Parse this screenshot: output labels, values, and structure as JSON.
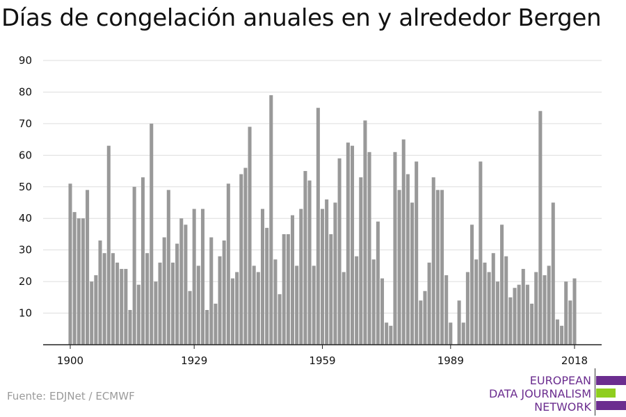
{
  "title": "Días de congelación anuales en y alrededor Bergen",
  "source": "Fuente: EDJNet / ECMWF",
  "logo": {
    "lines": [
      "EUROPEAN",
      "DATA JOURNALISM",
      "NETWORK"
    ],
    "colors": {
      "purple": "#6b2d8f",
      "green": "#8fce1f"
    }
  },
  "colors": {
    "bar": "#999999",
    "grid": "#dddddd",
    "axis": "#222222",
    "text": "#111111"
  },
  "chart_data": {
    "type": "bar",
    "title": "Días de congelación anuales en y alrededor Bergen",
    "xlabel": "",
    "ylabel": "",
    "ylim": [
      0,
      90
    ],
    "yticks": [
      10,
      20,
      30,
      40,
      50,
      60,
      70,
      80,
      90
    ],
    "xticks": [
      1900,
      1929,
      1959,
      1989,
      2018
    ],
    "grid": true,
    "x": [
      1900,
      1901,
      1902,
      1903,
      1904,
      1905,
      1906,
      1907,
      1908,
      1909,
      1910,
      1911,
      1912,
      1913,
      1914,
      1915,
      1916,
      1917,
      1918,
      1919,
      1920,
      1921,
      1922,
      1923,
      1924,
      1925,
      1926,
      1927,
      1928,
      1929,
      1930,
      1931,
      1932,
      1933,
      1934,
      1935,
      1936,
      1937,
      1938,
      1939,
      1940,
      1941,
      1942,
      1943,
      1944,
      1945,
      1946,
      1947,
      1948,
      1949,
      1950,
      1951,
      1952,
      1953,
      1954,
      1955,
      1956,
      1957,
      1958,
      1959,
      1960,
      1961,
      1962,
      1963,
      1964,
      1965,
      1966,
      1967,
      1968,
      1969,
      1970,
      1971,
      1972,
      1973,
      1974,
      1975,
      1976,
      1977,
      1978,
      1979,
      1980,
      1981,
      1982,
      1983,
      1984,
      1985,
      1986,
      1987,
      1988,
      1989,
      1990,
      1991,
      1992,
      1993,
      1994,
      1995,
      1996,
      1997,
      1998,
      1999,
      2000,
      2001,
      2002,
      2003,
      2004,
      2005,
      2006,
      2007,
      2008,
      2009,
      2010,
      2011,
      2012,
      2013,
      2014,
      2015,
      2016,
      2017,
      2018
    ],
    "values": [
      51,
      42,
      40,
      40,
      49,
      20,
      22,
      33,
      29,
      63,
      29,
      26,
      24,
      24,
      11,
      50,
      19,
      53,
      29,
      70,
      20,
      26,
      34,
      49,
      26,
      32,
      40,
      38,
      17,
      43,
      25,
      43,
      11,
      34,
      13,
      28,
      33,
      51,
      21,
      23,
      54,
      56,
      69,
      25,
      23,
      43,
      37,
      79,
      27,
      16,
      35,
      35,
      41,
      25,
      43,
      55,
      52,
      25,
      75,
      43,
      46,
      35,
      45,
      59,
      23,
      64,
      63,
      28,
      53,
      71,
      61,
      27,
      39,
      21,
      7,
      6,
      61,
      49,
      65,
      54,
      45,
      58,
      14,
      17,
      26,
      53,
      49,
      49,
      22,
      7,
      0,
      14,
      7,
      23,
      38,
      27,
      58,
      26,
      23,
      29,
      20,
      38,
      28,
      15,
      18,
      19,
      24,
      19,
      13,
      23,
      74,
      22,
      25,
      45,
      8,
      6,
      20,
      14,
      21
    ]
  }
}
